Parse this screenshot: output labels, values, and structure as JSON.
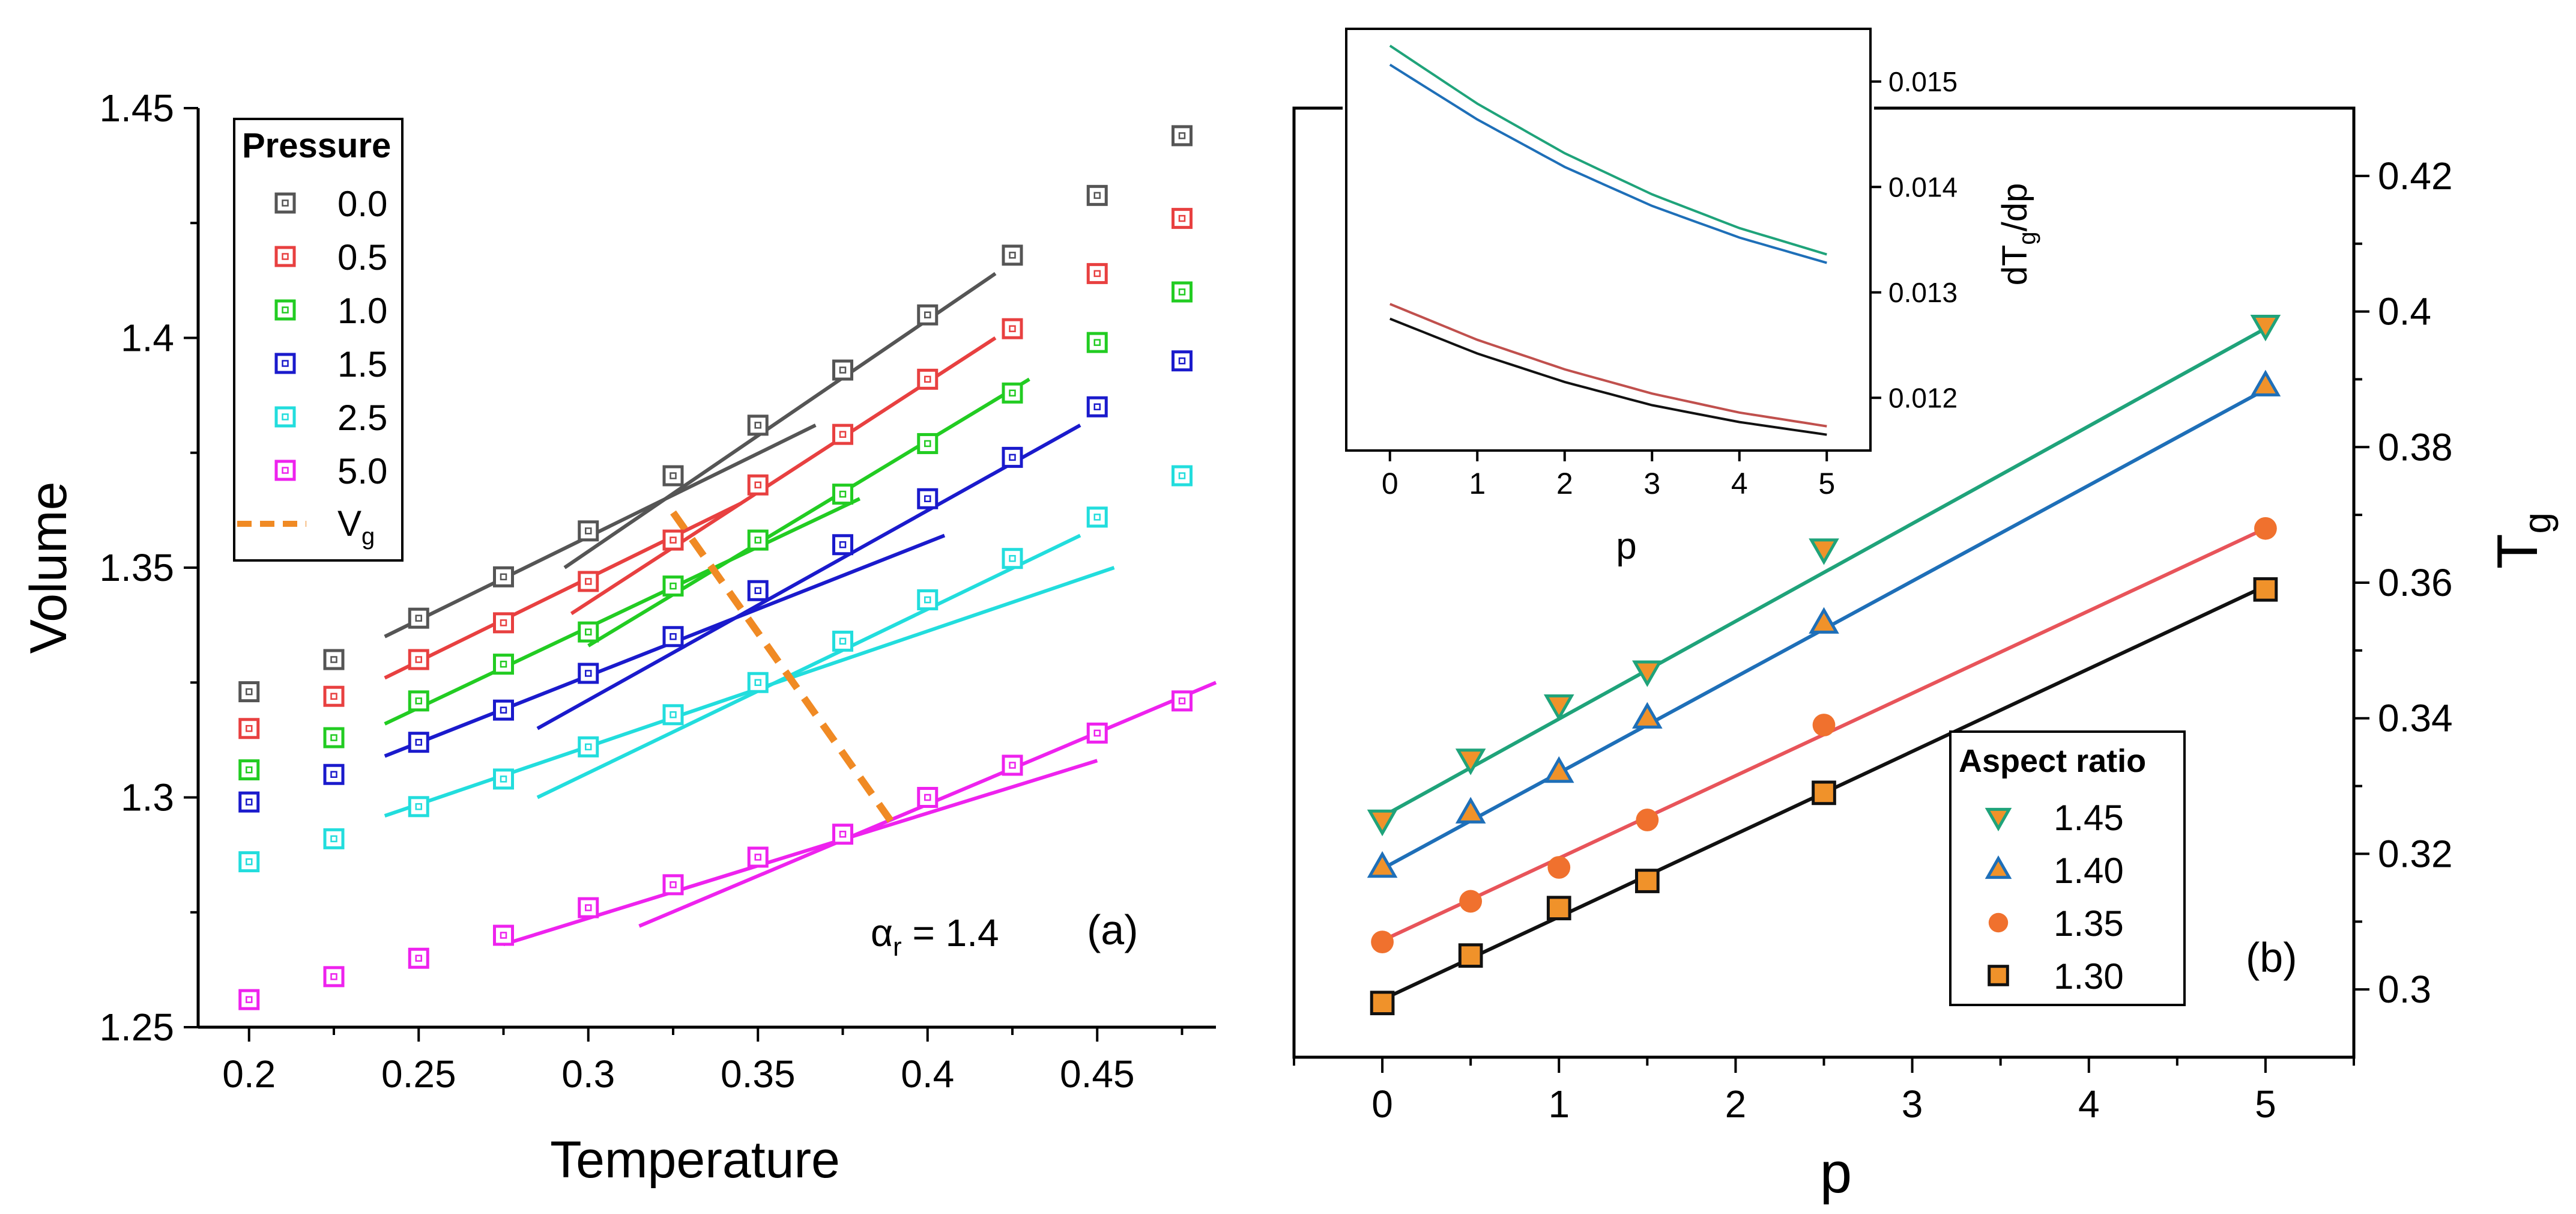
{
  "chart_data": [
    {
      "id": "a",
      "type": "scatter",
      "panel_label": "(a)",
      "xlabel": "Temperature",
      "ylabel": "Volume",
      "xlim": [
        0.185,
        0.485
      ],
      "ylim": [
        1.25,
        1.45
      ],
      "xticks": [
        0.2,
        0.25,
        0.3,
        0.35,
        0.4,
        0.45
      ],
      "xtick_labels": [
        "0.2",
        "0.25",
        "0.3",
        "0.35",
        "0.4",
        "0.45"
      ],
      "yticks": [
        1.25,
        1.3,
        1.35,
        1.4,
        1.45
      ],
      "ytick_labels": [
        "1.25",
        "1.3",
        "1.35",
        "1.4",
        "1.45"
      ],
      "annotation": {
        "prefix": "α",
        "sub": "r",
        "suffix": " = 1.4"
      },
      "legend": {
        "title": "Pressure",
        "placement": "top-left",
        "vg_label": "V",
        "vg_sub": "g"
      },
      "x": [
        0.2,
        0.225,
        0.25,
        0.275,
        0.3,
        0.325,
        0.35,
        0.375,
        0.4,
        0.425,
        0.45,
        0.475
      ],
      "series": [
        {
          "name": "0.0",
          "color": "#555555",
          "values": [
            1.323,
            1.33,
            1.339,
            1.348,
            1.358,
            1.37,
            1.381,
            1.393,
            1.405,
            1.418,
            1.431,
            1.444
          ],
          "fits": [
            [
              0.24,
              1.335,
              0.367,
              1.381
            ],
            [
              0.293,
              1.35,
              0.42,
              1.414
            ]
          ]
        },
        {
          "name": "0.5",
          "color": "#e84040",
          "values": [
            1.315,
            1.322,
            1.33,
            1.338,
            1.347,
            1.356,
            1.368,
            1.379,
            1.391,
            1.402,
            1.414,
            1.426
          ],
          "fits": [
            [
              0.24,
              1.326,
              0.345,
              1.364
            ],
            [
              0.295,
              1.34,
              0.42,
              1.4
            ]
          ]
        },
        {
          "name": "1.0",
          "color": "#22cc22",
          "values": [
            1.306,
            1.313,
            1.321,
            1.329,
            1.336,
            1.346,
            1.356,
            1.366,
            1.377,
            1.388,
            1.399,
            1.41
          ],
          "fits": [
            [
              0.24,
              1.316,
              0.38,
              1.365
            ],
            [
              0.3,
              1.333,
              0.43,
              1.391
            ]
          ]
        },
        {
          "name": "1.5",
          "color": "#1a1acc",
          "values": [
            1.299,
            1.305,
            1.312,
            1.319,
            1.327,
            1.335,
            1.345,
            1.355,
            1.365,
            1.374,
            1.385,
            1.395
          ],
          "fits": [
            [
              0.24,
              1.309,
              0.405,
              1.357
            ],
            [
              0.285,
              1.315,
              0.445,
              1.381
            ]
          ]
        },
        {
          "name": "2.5",
          "color": "#22dddd",
          "values": [
            1.286,
            1.291,
            1.298,
            1.304,
            1.311,
            1.318,
            1.325,
            1.334,
            1.343,
            1.352,
            1.361,
            1.37
          ],
          "fits": [
            [
              0.24,
              1.296,
              0.455,
              1.35
            ],
            [
              0.285,
              1.3,
              0.445,
              1.357
            ]
          ]
        },
        {
          "name": "5.0",
          "color": "#ee22ee",
          "values": [
            1.256,
            1.261,
            1.265,
            1.27,
            1.276,
            1.281,
            1.287,
            1.292,
            1.3,
            1.307,
            1.314,
            1.321
          ],
          "fits": [
            [
              0.275,
              1.268,
              0.45,
              1.308
            ],
            [
              0.315,
              1.272,
              0.485,
              1.325
            ]
          ]
        }
      ],
      "vg_line": {
        "x": [
          0.325,
          0.39
        ],
        "y": [
          1.362,
          1.294
        ],
        "color": "#f08a24"
      }
    },
    {
      "id": "b",
      "type": "scatter",
      "panel_label": "(b)",
      "xlabel": "p",
      "ylabel": "T",
      "ylabel_sub": "g",
      "xlim": [
        -0.5,
        5.5
      ],
      "ylim": [
        0.29,
        0.43
      ],
      "xticks": [
        0,
        1,
        2,
        3,
        4,
        5
      ],
      "xtick_labels": [
        "0",
        "1",
        "2",
        "3",
        "4",
        "5"
      ],
      "yticks": [
        0.3,
        0.32,
        0.34,
        0.36,
        0.38,
        0.4,
        0.42
      ],
      "ytick_labels": [
        "0.3",
        "0.32",
        "0.34",
        "0.36",
        "0.38",
        "0.4",
        "0.42"
      ],
      "legend": {
        "title": "Aspect ratio",
        "placement": "bottom-right"
      },
      "x": [
        0,
        0.5,
        1,
        1.5,
        2.5,
        5
      ],
      "series": [
        {
          "name": "1.45",
          "marker": "triangle-down",
          "fill": "#f0922a",
          "line_color": "#1fa37a",
          "values": [
            0.325,
            0.334,
            0.342,
            0.347,
            0.365,
            0.398
          ],
          "fit": [
            [
              0,
              0.3255
            ],
            [
              5,
              0.3975
            ]
          ]
        },
        {
          "name": "1.40",
          "marker": "triangle-up",
          "fill": "#f0922a",
          "line_color": "#1e6fb8",
          "values": [
            0.318,
            0.326,
            0.332,
            0.34,
            0.354,
            0.389
          ],
          "fit": [
            [
              0,
              0.3178
            ],
            [
              5,
              0.3885
            ]
          ]
        },
        {
          "name": "1.35",
          "marker": "circle",
          "fill": "#f0712e",
          "line_color": "#e8545a",
          "values": [
            0.307,
            0.313,
            0.318,
            0.325,
            0.339,
            0.368
          ],
          "fit": [
            [
              0,
              0.3072
            ],
            [
              5,
              0.368
            ]
          ]
        },
        {
          "name": "1.30",
          "marker": "square",
          "fill": "#f0922a",
          "line_color": "#111111",
          "values": [
            0.298,
            0.305,
            0.312,
            0.316,
            0.329,
            0.359
          ],
          "fit": [
            [
              0,
              0.2985
            ],
            [
              5,
              0.3595
            ]
          ]
        }
      ]
    },
    {
      "id": "b-inset",
      "type": "line",
      "xlabel": "p",
      "ylabel": "dT",
      "ylabel_sub": "g",
      "ylabel_suffix": "/dp",
      "xlim": [
        -0.5,
        5.5
      ],
      "ylim": [
        0.0115,
        0.0155
      ],
      "xticks": [
        0,
        1,
        2,
        3,
        4,
        5
      ],
      "xtick_labels": [
        "0",
        "1",
        "2",
        "3",
        "4",
        "5"
      ],
      "yticks": [
        0.012,
        0.013,
        0.014,
        0.015
      ],
      "ytick_labels": [
        "0.012",
        "0.013",
        "0.014",
        "0.015"
      ],
      "x": [
        0,
        1,
        2,
        3,
        4,
        5
      ],
      "series": [
        {
          "color": "#1fa37a",
          "values": [
            0.01534,
            0.01479,
            0.01432,
            0.01393,
            0.01361,
            0.01336
          ]
        },
        {
          "color": "#1e6fb8",
          "values": [
            0.01516,
            0.01464,
            0.01419,
            0.01382,
            0.01352,
            0.01328
          ]
        },
        {
          "color": "#c0504d",
          "values": [
            0.01289,
            0.01255,
            0.01227,
            0.01204,
            0.01186,
            0.01173
          ]
        },
        {
          "color": "#111111",
          "values": [
            0.01275,
            0.01242,
            0.01215,
            0.01193,
            0.01177,
            0.01165
          ]
        }
      ]
    }
  ]
}
